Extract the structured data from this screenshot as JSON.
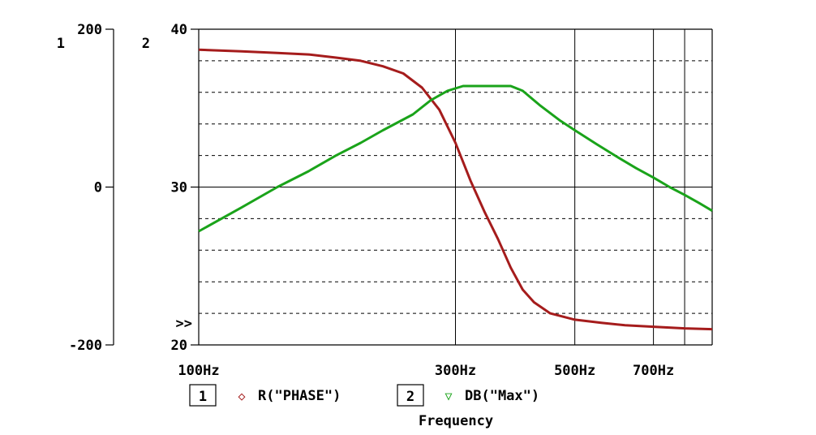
{
  "chart_data": {
    "type": "line",
    "xlabel": "Frequency",
    "x_scale": "log",
    "xlim": [
      100,
      900
    ],
    "x_ticks": [
      {
        "value": 100,
        "label": "100Hz"
      },
      {
        "value": 300,
        "label": "300Hz"
      },
      {
        "value": 500,
        "label": "500Hz"
      },
      {
        "value": 700,
        "label": "700Hz"
      }
    ],
    "x_vertical_grid": [
      300,
      500,
      700,
      800
    ],
    "axes": [
      {
        "id": "1",
        "ylim": [
          -200,
          200
        ],
        "ticks": [
          {
            "value": 200,
            "label": "200"
          },
          {
            "value": 0,
            "label": "0"
          },
          {
            "value": -200,
            "label": "-200"
          }
        ]
      },
      {
        "id": "2",
        "ylim": [
          20,
          40
        ],
        "ticks": [
          {
            "value": 40,
            "label": "40"
          },
          {
            "value": 30,
            "label": "30"
          },
          {
            "value": 20,
            "label": "20"
          }
        ],
        "active_marker": ">>"
      }
    ],
    "y_dashed_grid": [
      22,
      24,
      26,
      28,
      32,
      34,
      36,
      38
    ],
    "series": [
      {
        "axis": "1",
        "name": "R(\"PHASE\")",
        "marker": "◇",
        "color": "#a51c1c",
        "points": [
          [
            100,
            174
          ],
          [
            120,
            172
          ],
          [
            140,
            170
          ],
          [
            160,
            168
          ],
          [
            180,
            164
          ],
          [
            200,
            160
          ],
          [
            220,
            153
          ],
          [
            240,
            144
          ],
          [
            260,
            126
          ],
          [
            280,
            98
          ],
          [
            300,
            56
          ],
          [
            320,
            8
          ],
          [
            340,
            -32
          ],
          [
            360,
            -66
          ],
          [
            380,
            -102
          ],
          [
            400,
            -130
          ],
          [
            420,
            -146
          ],
          [
            450,
            -160
          ],
          [
            500,
            -168
          ],
          [
            560,
            -172
          ],
          [
            620,
            -175
          ],
          [
            700,
            -177
          ],
          [
            800,
            -179
          ],
          [
            900,
            -180
          ]
        ]
      },
      {
        "axis": "2",
        "name": "DB(\"Max\")",
        "marker": "▽",
        "color": "#1aa31a",
        "points": [
          [
            100,
            27.2
          ],
          [
            120,
            28.7
          ],
          [
            140,
            30.0
          ],
          [
            160,
            31.0
          ],
          [
            180,
            32.0
          ],
          [
            200,
            32.8
          ],
          [
            220,
            33.6
          ],
          [
            250,
            34.6
          ],
          [
            270,
            35.5
          ],
          [
            290,
            36.1
          ],
          [
            310,
            36.4
          ],
          [
            330,
            36.4
          ],
          [
            360,
            36.4
          ],
          [
            380,
            36.4
          ],
          [
            400,
            36.1
          ],
          [
            430,
            35.2
          ],
          [
            470,
            34.2
          ],
          [
            500,
            33.6
          ],
          [
            550,
            32.7
          ],
          [
            600,
            31.9
          ],
          [
            650,
            31.2
          ],
          [
            700,
            30.6
          ],
          [
            750,
            30.0
          ],
          [
            800,
            29.5
          ],
          [
            850,
            29.0
          ],
          [
            900,
            28.5
          ]
        ]
      }
    ]
  }
}
